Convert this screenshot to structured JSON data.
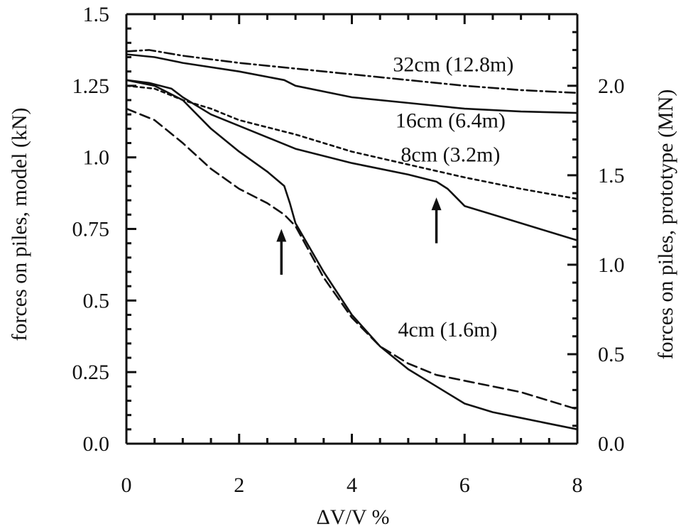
{
  "chart_data": {
    "type": "line",
    "xlabel": "ΔV/V %",
    "ylabel_left": "forces on piles, model (kN)",
    "ylabel_right": "forces on piles, prototype (MN)",
    "xlim": [
      0,
      8
    ],
    "ylim": [
      0,
      1.5
    ],
    "ylim_right": [
      0,
      2.4
    ],
    "x_ticks": [
      0,
      2,
      4,
      6,
      8
    ],
    "x_tick_labels": [
      "0",
      "2",
      "4",
      "6",
      "8"
    ],
    "y_ticks": [
      0,
      0.25,
      0.5,
      0.75,
      1.0,
      1.25,
      1.5
    ],
    "y_tick_labels": [
      "0.0",
      "0.25",
      "0.5",
      "0.75",
      "1.0",
      "1.25",
      "1.5"
    ],
    "y_right_ticks": [
      0,
      0.5,
      1.0,
      1.5,
      2.0
    ],
    "y_right_tick_labels": [
      "0.0",
      "0.5",
      "1.0",
      "1.5",
      "2.0"
    ],
    "grid": false,
    "series": [
      {
        "name": "32cm (12.8m)",
        "line_style": "solid",
        "points": [
          [
            0,
            1.36
          ],
          [
            0.5,
            1.35
          ],
          [
            1,
            1.33
          ],
          [
            2,
            1.3
          ],
          [
            2.8,
            1.27
          ],
          [
            3,
            1.25
          ],
          [
            4,
            1.21
          ],
          [
            5,
            1.19
          ],
          [
            6,
            1.17
          ],
          [
            7,
            1.16
          ],
          [
            8,
            1.155
          ]
        ]
      },
      {
        "name": "32cm (12.8m)",
        "line_style": "dash-dot",
        "points": [
          [
            0,
            1.37
          ],
          [
            0.4,
            1.375
          ],
          [
            1,
            1.355
          ],
          [
            2,
            1.33
          ],
          [
            3,
            1.31
          ],
          [
            4,
            1.29
          ],
          [
            5,
            1.27
          ],
          [
            6,
            1.25
          ],
          [
            7,
            1.235
          ],
          [
            8,
            1.225
          ]
        ]
      },
      {
        "name": "8cm (3.2m)",
        "line_style": "solid",
        "points": [
          [
            0,
            1.27
          ],
          [
            0.4,
            1.26
          ],
          [
            0.8,
            1.24
          ],
          [
            1,
            1.21
          ],
          [
            1.5,
            1.15
          ],
          [
            2,
            1.11
          ],
          [
            2.5,
            1.07
          ],
          [
            3,
            1.03
          ],
          [
            4,
            0.98
          ],
          [
            5,
            0.94
          ],
          [
            5.5,
            0.915
          ],
          [
            5.7,
            0.89
          ],
          [
            6,
            0.83
          ],
          [
            6.5,
            0.8
          ],
          [
            7,
            0.77
          ],
          [
            7.5,
            0.74
          ],
          [
            8,
            0.71
          ]
        ]
      },
      {
        "name": "8cm (3.2m)",
        "line_style": "dotted",
        "points": [
          [
            0,
            1.25
          ],
          [
            0.5,
            1.24
          ],
          [
            1,
            1.2
          ],
          [
            1.5,
            1.17
          ],
          [
            2,
            1.13
          ],
          [
            3,
            1.08
          ],
          [
            4,
            1.02
          ],
          [
            5,
            0.975
          ],
          [
            6,
            0.93
          ],
          [
            7,
            0.89
          ],
          [
            8,
            0.855
          ]
        ]
      },
      {
        "name": "4cm (1.6m)",
        "line_style": "solid",
        "points": [
          [
            0,
            1.27
          ],
          [
            0.5,
            1.25
          ],
          [
            1,
            1.2
          ],
          [
            1.5,
            1.1
          ],
          [
            2,
            1.02
          ],
          [
            2.5,
            0.95
          ],
          [
            2.8,
            0.9
          ],
          [
            2.9,
            0.84
          ],
          [
            3,
            0.77
          ],
          [
            3.5,
            0.6
          ],
          [
            4,
            0.45
          ],
          [
            4.5,
            0.34
          ],
          [
            5,
            0.26
          ],
          [
            5.5,
            0.2
          ],
          [
            6,
            0.14
          ],
          [
            6.5,
            0.11
          ],
          [
            7,
            0.09
          ],
          [
            7.5,
            0.07
          ],
          [
            8,
            0.05
          ]
        ]
      },
      {
        "name": "4cm (1.6m)",
        "line_style": "dashed",
        "points": [
          [
            0,
            1.17
          ],
          [
            0.5,
            1.13
          ],
          [
            1,
            1.05
          ],
          [
            1.5,
            0.96
          ],
          [
            2,
            0.89
          ],
          [
            2.5,
            0.84
          ],
          [
            2.8,
            0.8
          ],
          [
            3,
            0.76
          ],
          [
            3.5,
            0.58
          ],
          [
            4,
            0.44
          ],
          [
            4.5,
            0.34
          ],
          [
            5,
            0.28
          ],
          [
            5.5,
            0.24
          ],
          [
            6,
            0.22
          ],
          [
            7,
            0.18
          ],
          [
            8,
            0.12
          ]
        ]
      }
    ],
    "annotations": [
      {
        "text": "32cm (12.8m)",
        "x": 5.8,
        "y": 1.3
      },
      {
        "text": "16cm (6.4m)",
        "x": 5.75,
        "y": 1.105
      },
      {
        "text": "8cm (3.2m)",
        "x": 5.75,
        "y": 0.985
      },
      {
        "text": "4cm (1.6m)",
        "x": 5.7,
        "y": 0.375
      }
    ],
    "arrows": [
      {
        "x": 2.75,
        "y_tail": 0.59,
        "y_head": 0.75
      },
      {
        "x": 5.5,
        "y_tail": 0.7,
        "y_head": 0.86
      }
    ]
  }
}
